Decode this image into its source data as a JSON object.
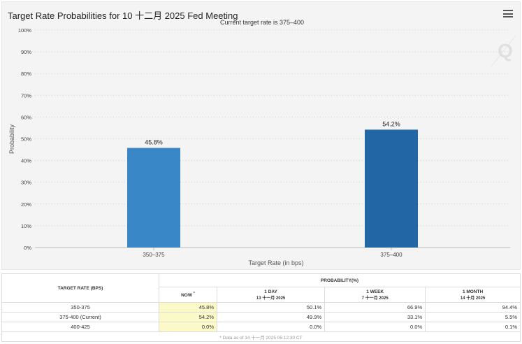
{
  "chart_data": {
    "type": "bar",
    "title": "Target Rate Probabilities for 10 十二月 2025 Fed Meeting",
    "subtitle": "Current target rate is 375–400",
    "categories": [
      "350–375",
      "375–400"
    ],
    "values": [
      45.8,
      54.2
    ],
    "data_labels": [
      "45.8%",
      "54.2%"
    ],
    "colors": [
      "#3a87c8",
      "#2366a6"
    ],
    "xlabel": "Target Rate (in bps)",
    "ylabel": "Probability",
    "ylim": [
      0,
      100
    ],
    "yticks": [
      "0%",
      "10%",
      "20%",
      "30%",
      "40%",
      "50%",
      "60%",
      "70%",
      "80%",
      "90%",
      "100%"
    ],
    "grid": true
  },
  "watermark": "Q",
  "menu_icon": "hamburger-menu-icon",
  "table": {
    "header_rate": "TARGET RATE (BPS)",
    "header_prob": "PROBABILITY(%)",
    "col_now": "NOW",
    "col_now_mark": "*",
    "col_1day": "1 DAY",
    "col_1day_date": "13 十一月 2025",
    "col_1week": "1 WEEK",
    "col_1week_date": "7 十一月 2025",
    "col_1month": "1 MONTH",
    "col_1month_date": "14 十月 2025",
    "rows": [
      {
        "rate": "350-375",
        "now": "45.8%",
        "day": "50.1%",
        "week": "66.9%",
        "month": "94.4%"
      },
      {
        "rate": "375-400 (Current)",
        "now": "54.2%",
        "day": "49.9%",
        "week": "33.1%",
        "month": "5.5%"
      },
      {
        "rate": "400-425",
        "now": "0.0%",
        "day": "0.0%",
        "week": "0.0%",
        "month": "0.1%"
      }
    ],
    "footnote": "* Data as of 14 十一月 2025 05:12:30 CT"
  }
}
